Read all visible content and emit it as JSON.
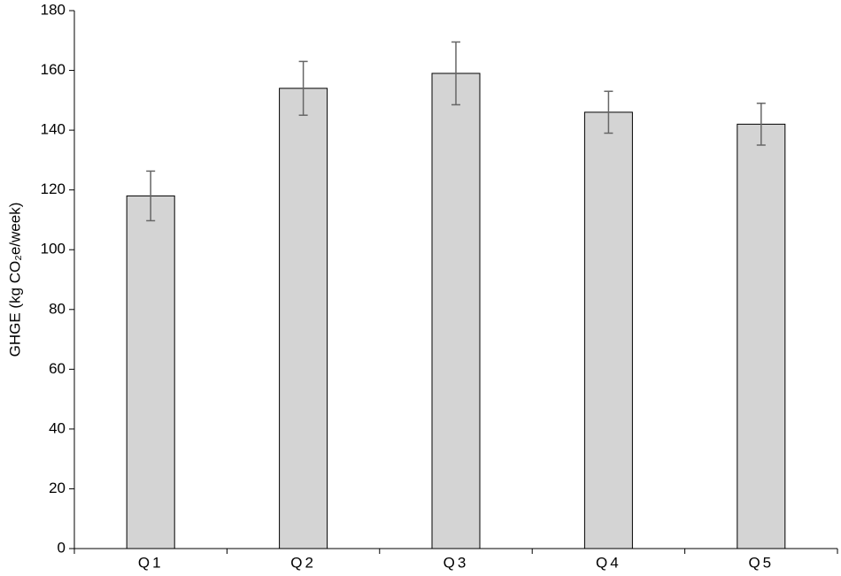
{
  "chart_data": {
    "type": "bar",
    "y_label": "GHGE (kg CO₂e/week)",
    "categories": [
      "Q1",
      "Q2",
      "Q3",
      "Q4",
      "Q5"
    ],
    "values": [
      118,
      154,
      159,
      146,
      142
    ],
    "errors": [
      8.3,
      9,
      10.5,
      7,
      7
    ],
    "color": "#d4d4d4",
    "ylim": [
      0,
      180
    ],
    "yticks": [
      0,
      20,
      40,
      60,
      80,
      100,
      120,
      140,
      160,
      180
    ],
    "grid": false
  }
}
